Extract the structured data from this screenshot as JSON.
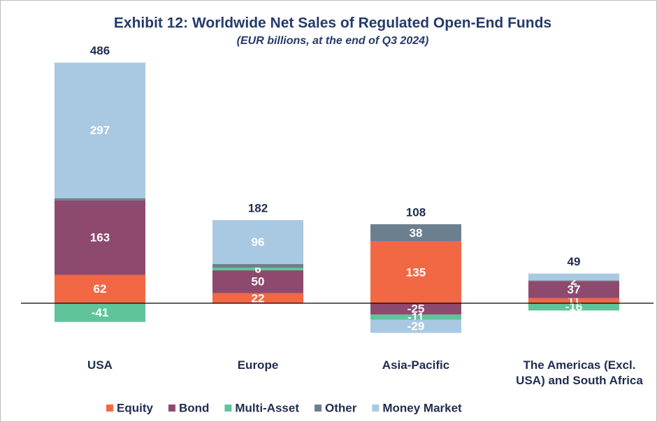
{
  "chart_data": {
    "type": "stacked_bar",
    "title": "Exhibit 12: Worldwide Net Sales of Regulated Open-End Funds",
    "subtitle": "(EUR billions, at the end of Q3 2024)",
    "categories": [
      "USA",
      "Europe",
      "Asia-Pacific",
      "The Americas (Excl. USA) and South Africa"
    ],
    "series": [
      {
        "name": "Equity",
        "color": "#f26845",
        "values": [
          62,
          22,
          135,
          11
        ]
      },
      {
        "name": "Bond",
        "color": "#8e4a6e",
        "values": [
          163,
          50,
          -25,
          37
        ]
      },
      {
        "name": "Multi-Asset",
        "color": "#5fc49a",
        "values": [
          -41,
          6,
          -11,
          -16
        ]
      },
      {
        "name": "Other",
        "color": "#6c7f8e",
        "values": [
          5,
          8,
          38,
          2
        ],
        "value_labels": [
          null,
          null,
          "38",
          "2"
        ]
      },
      {
        "name": "Money Market",
        "color": "#a9c9e2",
        "values": [
          297,
          96,
          -29,
          15
        ],
        "value_labels": [
          "297",
          "96",
          "-29",
          null
        ]
      }
    ],
    "totals": [
      486,
      182,
      108,
      49
    ],
    "ylim": [
      -150,
      560
    ],
    "legend": "bottom"
  }
}
